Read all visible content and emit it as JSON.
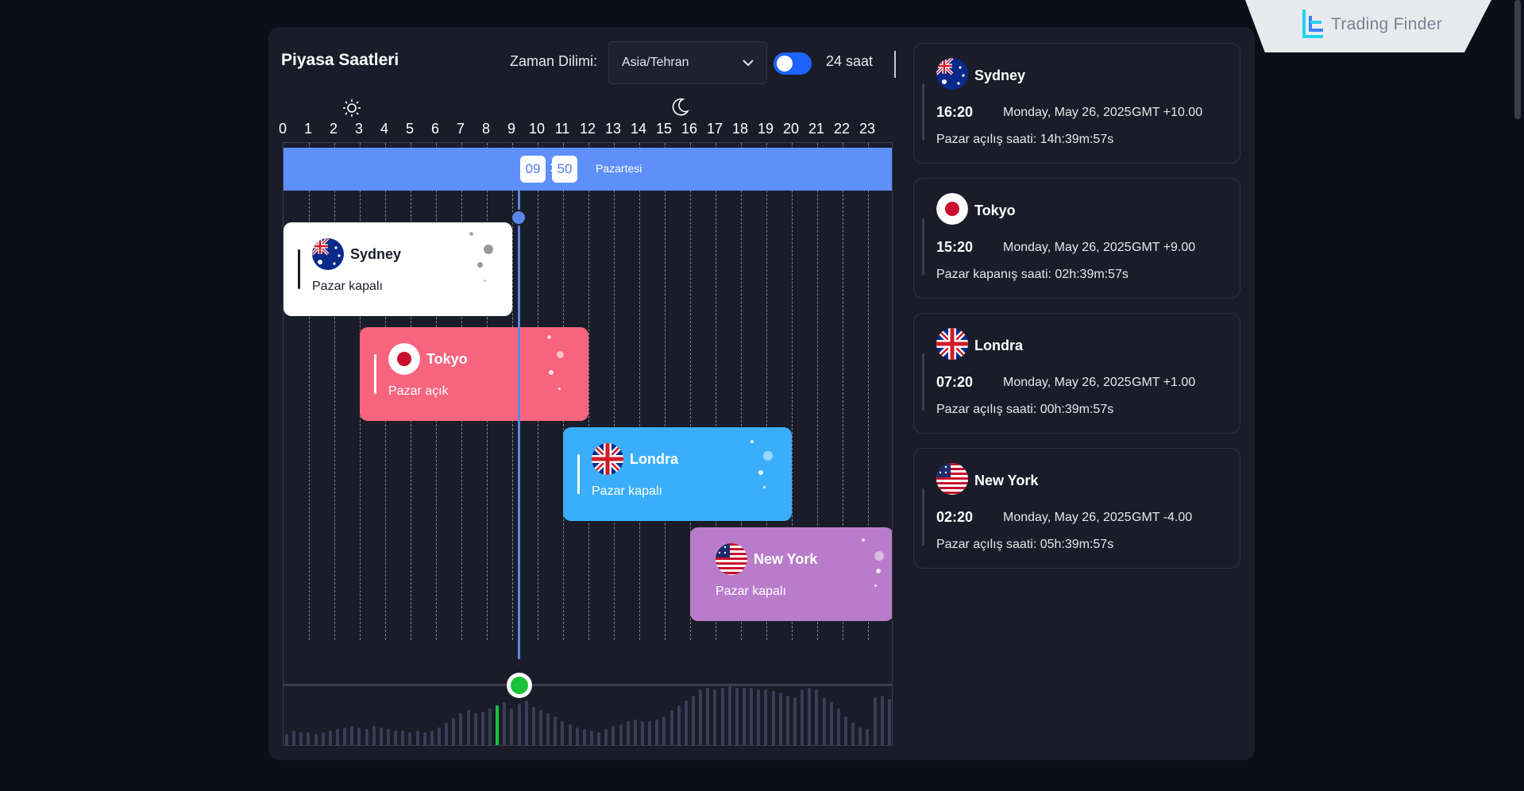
{
  "logo": {
    "text": "Trading Finder"
  },
  "header": {
    "title": "Piyasa Saatleri",
    "timezone_label": "Zaman Dilimi:",
    "timezone_value": "Asia/Tehran",
    "format_toggle_on": true,
    "format_label": "24 saat"
  },
  "timeline": {
    "hours": [
      "0",
      "1",
      "2",
      "3",
      "4",
      "5",
      "6",
      "7",
      "8",
      "9",
      "10",
      "11",
      "12",
      "13",
      "14",
      "15",
      "16",
      "17",
      "18",
      "19",
      "20",
      "21",
      "22",
      "23"
    ],
    "day_icon": "sun-icon",
    "night_icon": "moon-icon",
    "current_hour": "09",
    "current_minute": "50",
    "separator": ":",
    "day_name": "Pazartesi"
  },
  "sessions": [
    {
      "name": "Sydney",
      "status": "Pazar kapalı",
      "color": "#ffffff",
      "text_color": "#1a1d29"
    },
    {
      "name": "Tokyo",
      "status": "Pazar açık",
      "color": "#f7647e",
      "text_color": "#ffffff"
    },
    {
      "name": "Londra",
      "status": "Pazar kapalı",
      "color": "#3aaefb",
      "text_color": "#ffffff"
    },
    {
      "name": "New York",
      "status": "Pazar kapalı",
      "color": "#b97ccb",
      "text_color": "#ffffff"
    }
  ],
  "cards": [
    {
      "name": "Sydney",
      "time": "16:20",
      "date": "Monday, May 26, 2025",
      "gmt": "GMT +10.00",
      "info": "Pazar açılış saati: 14h:39m:57s"
    },
    {
      "name": "Tokyo",
      "time": "15:20",
      "date": "Monday, May 26, 2025",
      "gmt": "GMT +9.00",
      "info": "Pazar kapanış saati: 02h:39m:57s"
    },
    {
      "name": "Londra",
      "time": "07:20",
      "date": "Monday, May 26, 2025",
      "gmt": "GMT +1.00",
      "info": "Pazar açılış saati: 00h:39m:57s"
    },
    {
      "name": "New York",
      "time": "02:20",
      "date": "Monday, May 26, 2025",
      "gmt": "GMT -4.00",
      "info": "Pazar açılış saati: 05h:39m:57s"
    }
  ],
  "colors": {
    "accent": "#1f63ff",
    "day_bar": "#5f8ffb",
    "now_line": "#5b86e5",
    "now_marker": "#18c33a",
    "panel": "#1a1d29",
    "background": "#0c0f1a"
  }
}
